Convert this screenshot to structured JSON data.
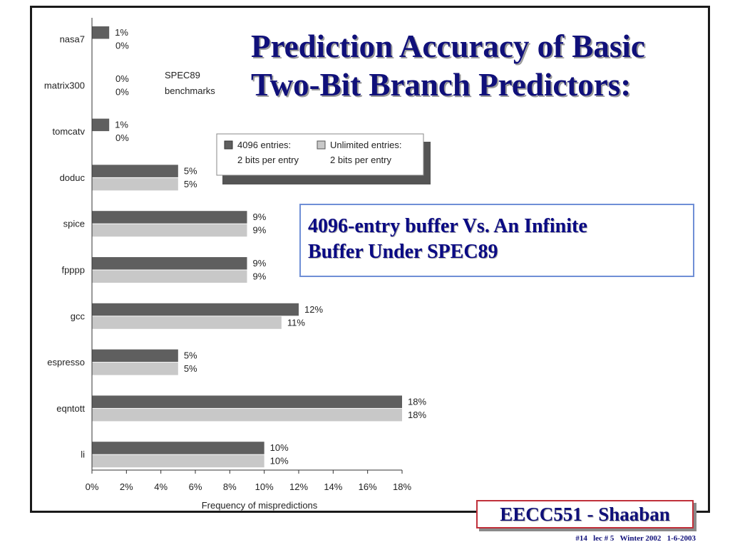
{
  "slide": {
    "title_line1": "Prediction Accuracy of Basic",
    "title_line2": "Two-Bit Branch Predictors:",
    "callout_line1": "4096-entry buffer Vs.  An Infinite",
    "callout_line2": "Buffer Under SPEC89",
    "brand": "EECC551 - Shaaban",
    "footer": "#14   lec # 5   Winter 2002   1-6-2003"
  },
  "chart_data": {
    "type": "bar",
    "orientation": "horizontal",
    "categories": [
      "nasa7",
      "matrix300",
      "tomcatv",
      "doduc",
      "spice",
      "fpppp",
      "gcc",
      "espresso",
      "eqntott",
      "li"
    ],
    "series": [
      {
        "name": "4096 entries: 2 bits per entry",
        "name_line1": "4096 entries:",
        "name_line2": "2 bits per entry",
        "color": "#5f5f5f",
        "values": [
          1,
          0,
          1,
          5,
          9,
          9,
          12,
          5,
          18,
          10
        ],
        "labels": [
          "1%",
          "0%",
          "1%",
          "5%",
          "9%",
          "9%",
          "12%",
          "5%",
          "18%",
          "10%"
        ]
      },
      {
        "name": "Unlimited entries: 2 bits per entry",
        "name_line1": "Unlimited entries:",
        "name_line2": "2 bits per entry",
        "color": "#c8c8c8",
        "values": [
          0,
          0,
          0,
          5,
          9,
          9,
          11,
          5,
          18,
          10
        ],
        "labels": [
          "0%",
          "0%",
          "0%",
          "5%",
          "9%",
          "9%",
          "11%",
          "5%",
          "18%",
          "10%"
        ]
      }
    ],
    "xlim": [
      0,
      18
    ],
    "xticks": [
      "0%",
      "2%",
      "4%",
      "6%",
      "8%",
      "10%",
      "12%",
      "14%",
      "16%",
      "18%"
    ],
    "xlabel": "Frequency of mispredictions",
    "annotation_line1": "SPEC89",
    "annotation_line2": "benchmarks",
    "grid": false,
    "legend": "top-center"
  }
}
